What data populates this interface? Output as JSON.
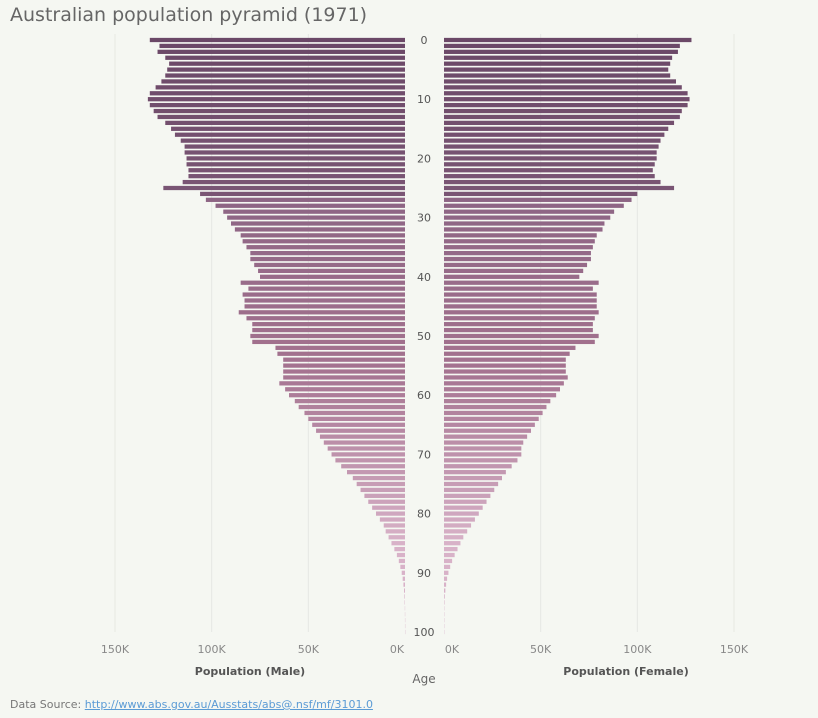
{
  "title": "Australian population pyramid (1971)",
  "source": {
    "label": "Data Source:",
    "url": "http://www.abs.gov.au/Ausstats/abs@.nsf/mf/3101.0"
  },
  "colors": {
    "young": "#6b4867",
    "mid": "#a4728f",
    "old": "#d8b2c8",
    "grid": "#e6e8e3"
  },
  "chart_data": {
    "type": "bar",
    "orientation": "horizontal",
    "layout": "population-pyramid",
    "title": "Australian population pyramid (1971)",
    "center_axis_label": "Age",
    "age_ticks": [
      "0",
      "10",
      "20",
      "30",
      "40",
      "50",
      "60",
      "70",
      "80",
      "90",
      "100"
    ],
    "male_axis": {
      "label": "Population (Male)",
      "ticks": [
        "150K",
        "100K",
        "50K",
        "0K"
      ],
      "tick_values": [
        150000,
        100000,
        50000,
        0
      ],
      "range": [
        0,
        150000
      ],
      "direction": "reversed"
    },
    "female_axis": {
      "label": "Population (Female)",
      "ticks": [
        "0K",
        "50K",
        "100K",
        "150K"
      ],
      "tick_values": [
        0,
        50000,
        100000,
        150000
      ],
      "range": [
        0,
        150000
      ]
    },
    "ages": [
      0,
      1,
      2,
      3,
      4,
      5,
      6,
      7,
      8,
      9,
      10,
      11,
      12,
      13,
      14,
      15,
      16,
      17,
      18,
      19,
      20,
      21,
      22,
      23,
      24,
      25,
      26,
      27,
      28,
      29,
      30,
      31,
      32,
      33,
      34,
      35,
      36,
      37,
      38,
      39,
      40,
      41,
      42,
      43,
      44,
      45,
      46,
      47,
      48,
      49,
      50,
      51,
      52,
      53,
      54,
      55,
      56,
      57,
      58,
      59,
      60,
      61,
      62,
      63,
      64,
      65,
      66,
      67,
      68,
      69,
      70,
      71,
      72,
      73,
      74,
      75,
      76,
      77,
      78,
      79,
      80,
      81,
      82,
      83,
      84,
      85,
      86,
      87,
      88,
      89,
      90,
      91,
      92,
      93,
      94,
      95,
      96,
      97,
      98,
      99,
      100
    ],
    "series": [
      {
        "name": "Population (Male)",
        "values": [
          132000,
          127000,
          128000,
          124000,
          122000,
          123000,
          124000,
          126000,
          129000,
          132000,
          133000,
          132000,
          130000,
          128000,
          124000,
          121000,
          119000,
          116000,
          114000,
          114000,
          113000,
          113000,
          112000,
          112000,
          115000,
          125000,
          106000,
          103000,
          98000,
          94000,
          92000,
          90000,
          88000,
          85000,
          84000,
          82000,
          80000,
          80000,
          78000,
          76000,
          75000,
          85000,
          81000,
          84000,
          83000,
          83000,
          86000,
          82000,
          79000,
          79000,
          80000,
          79000,
          67000,
          66000,
          63000,
          63000,
          63000,
          63000,
          65000,
          62000,
          60000,
          57000,
          55000,
          52000,
          50000,
          48000,
          46000,
          44000,
          42000,
          40000,
          38000,
          36000,
          33000,
          30000,
          27000,
          25000,
          23000,
          21000,
          19000,
          17000,
          15000,
          13000,
          11000,
          10000,
          8500,
          7000,
          5500,
          4200,
          3200,
          2400,
          1700,
          1200,
          800,
          500,
          300,
          200,
          100,
          60,
          30,
          15,
          5
        ]
      },
      {
        "name": "Population (Female)",
        "values": [
          128000,
          122000,
          121000,
          118000,
          117000,
          116000,
          117000,
          120000,
          123000,
          126000,
          127000,
          126000,
          123000,
          122000,
          119000,
          116000,
          114000,
          112000,
          111000,
          110000,
          110000,
          109000,
          108000,
          109000,
          112000,
          119000,
          100000,
          97000,
          93000,
          88000,
          86000,
          83000,
          82000,
          79000,
          78000,
          77000,
          76000,
          76000,
          74000,
          72000,
          70000,
          80000,
          77000,
          79000,
          79000,
          79000,
          80000,
          78000,
          77000,
          77000,
          80000,
          78000,
          68000,
          65000,
          63000,
          63000,
          63000,
          64000,
          62000,
          60000,
          58000,
          55000,
          53000,
          51000,
          49000,
          47000,
          45000,
          43000,
          41000,
          40000,
          40000,
          38000,
          35000,
          32000,
          30000,
          28000,
          26000,
          24000,
          22000,
          20000,
          18000,
          16000,
          14000,
          12000,
          10000,
          8500,
          7000,
          5500,
          4200,
          3200,
          2300,
          1600,
          1100,
          700,
          400,
          250,
          150,
          80,
          40,
          20,
          8
        ]
      }
    ]
  }
}
